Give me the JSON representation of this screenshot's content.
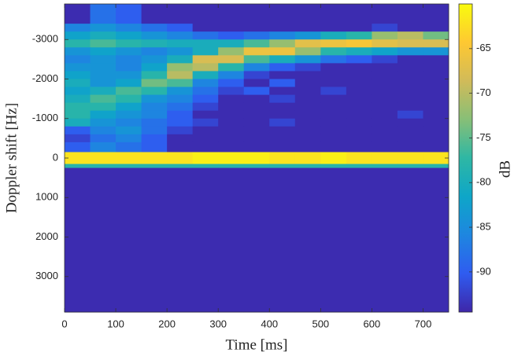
{
  "chart_data": {
    "type": "heatmap",
    "xlabel": "Time [ms]",
    "ylabel": "Doppler shift [Hz]",
    "x_bins": [
      0,
      50,
      100,
      150,
      200,
      250,
      300,
      350,
      400,
      450,
      500,
      550,
      600,
      650,
      700,
      750
    ],
    "y_bins": [
      -3900,
      -3400,
      -3200,
      -3000,
      -2800,
      -2600,
      -2400,
      -2200,
      -2000,
      -1800,
      -1600,
      -1400,
      -1200,
      -1000,
      -800,
      -600,
      -400,
      -150,
      150,
      250,
      3900
    ],
    "values": [
      [
        -94,
        -88,
        -90,
        -94,
        -94,
        -94,
        -94,
        -94,
        -94,
        -94,
        -94,
        -94,
        -94,
        -94,
        -94
      ],
      [
        -86,
        -84,
        -86,
        -88,
        -90,
        -94,
        -94,
        -94,
        -94,
        -94,
        -94,
        -94,
        -92,
        -94,
        -94
      ],
      [
        -82,
        -80,
        -82,
        -84,
        -86,
        -88,
        -90,
        -88,
        -86,
        -84,
        -80,
        -78,
        -72,
        -70,
        -74
      ],
      [
        -78,
        -76,
        -78,
        -79,
        -80,
        -80,
        -80,
        -76,
        -72,
        -67,
        -66,
        -65,
        -67,
        -68,
        -68
      ],
      [
        -84,
        -82,
        -84,
        -86,
        -84,
        -80,
        -72,
        -66,
        -66,
        -72,
        -78,
        -80,
        -82,
        -84,
        -84
      ],
      [
        -86,
        -84,
        -86,
        -84,
        -80,
        -68,
        -68,
        -76,
        -80,
        -84,
        -88,
        -90,
        -92,
        -94,
        -94
      ],
      [
        -84,
        -84,
        -86,
        -82,
        -72,
        -70,
        -78,
        -86,
        -90,
        -92,
        -94,
        -94,
        -94,
        -94,
        -94
      ],
      [
        -82,
        -84,
        -84,
        -78,
        -70,
        -80,
        -86,
        -92,
        -94,
        -94,
        -94,
        -94,
        -94,
        -94,
        -94
      ],
      [
        -80,
        -84,
        -82,
        -74,
        -76,
        -86,
        -90,
        -94,
        -90,
        -94,
        -94,
        -94,
        -94,
        -94,
        -94
      ],
      [
        -82,
        -80,
        -76,
        -78,
        -84,
        -88,
        -92,
        -90,
        -94,
        -94,
        -92,
        -94,
        -94,
        -94,
        -94
      ],
      [
        -80,
        -76,
        -78,
        -84,
        -86,
        -90,
        -94,
        -94,
        -92,
        -94,
        -94,
        -94,
        -94,
        -94,
        -94
      ],
      [
        -78,
        -78,
        -82,
        -86,
        -88,
        -92,
        -94,
        -94,
        -94,
        -94,
        -94,
        -94,
        -94,
        -94,
        -94
      ],
      [
        -78,
        -82,
        -84,
        -86,
        -90,
        -94,
        -94,
        -94,
        -94,
        -94,
        -94,
        -94,
        -94,
        -92,
        -94
      ],
      [
        -80,
        -84,
        -86,
        -88,
        -90,
        -92,
        -94,
        -94,
        -92,
        -94,
        -94,
        -94,
        -94,
        -94,
        -94
      ],
      [
        -90,
        -86,
        -84,
        -88,
        -92,
        -94,
        -94,
        -94,
        -94,
        -94,
        -94,
        -94,
        -94,
        -94,
        -94
      ],
      [
        -92,
        -88,
        -86,
        -90,
        -94,
        -94,
        -94,
        -94,
        -94,
        -94,
        -94,
        -94,
        -94,
        -94,
        -94
      ],
      [
        -90,
        -86,
        -88,
        -90,
        -94,
        -94,
        -94,
        -94,
        -94,
        -94,
        -94,
        -94,
        -94,
        -94,
        -94
      ],
      [
        -62,
        -62,
        -62,
        -62,
        -62,
        -61,
        -61,
        -61,
        -62,
        -62,
        -61,
        -62,
        -62,
        -62,
        -62
      ],
      [
        -78,
        -78,
        -78,
        -78,
        -78,
        -78,
        -78,
        -78,
        -78,
        -78,
        -78,
        -78,
        -78,
        -78,
        -78
      ],
      [
        -94,
        -94,
        -94,
        -94,
        -94,
        -94,
        -94,
        -94,
        -94,
        -94,
        -94,
        -94,
        -94,
        -94,
        -94
      ]
    ],
    "xlim": [
      0,
      750
    ],
    "ylim": [
      -3900,
      3900
    ],
    "y_reversed": true,
    "xticks": [
      0,
      100,
      200,
      300,
      400,
      500,
      600,
      700
    ],
    "yticks": [
      -3000,
      -2000,
      -1000,
      0,
      1000,
      2000,
      3000
    ],
    "colorbar": {
      "label": "dB",
      "clim": [
        -94.5,
        -60
      ],
      "ticks": [
        -90,
        -85,
        -80,
        -75,
        -70,
        -65
      ]
    },
    "colormap": [
      "#3e26a8",
      "#2f5cf0",
      "#1e86e0",
      "#0ea6c8",
      "#2eb7a4",
      "#87bf77",
      "#d1bb59",
      "#fec832",
      "#f9fb0e"
    ]
  }
}
